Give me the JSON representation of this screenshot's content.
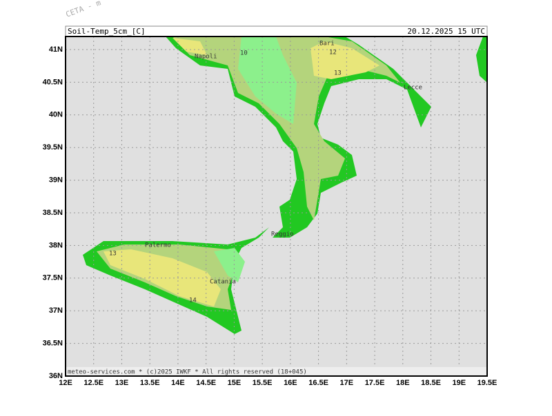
{
  "watermark": "CETA - m",
  "header": {
    "title": "Soil-Temp_5cm_[C]",
    "timestamp": "20.12.2025 15 UTC"
  },
  "footer": "meteo-services.com * (c)2025 IWKF * All rights reserved (18+045)",
  "lat_ticks": [
    "41N",
    "40.5N",
    "40N",
    "39.5N",
    "39N",
    "38.5N",
    "38N",
    "37.5N",
    "37N",
    "36.5N",
    "36N"
  ],
  "lon_ticks": [
    "12E",
    "12.5E",
    "13E",
    "13.5E",
    "14E",
    "14.5E",
    "15E",
    "15.5E",
    "16E",
    "16.5E",
    "17E",
    "17.5E",
    "18E",
    "18.5E",
    "19E",
    "19.5E"
  ],
  "places": [
    {
      "label": "Napoli"
    },
    {
      "label": "Bari"
    },
    {
      "label": "Lecce"
    },
    {
      "label": "Palermo"
    },
    {
      "label": "Catania"
    },
    {
      "label": "Reggio"
    }
  ],
  "contour_labels": [
    "10",
    "12",
    "13",
    "13",
    "14"
  ]
}
